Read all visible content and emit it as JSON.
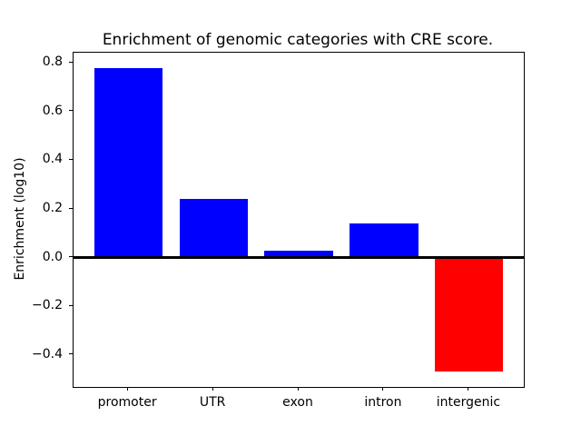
{
  "figure": {
    "title": "Enrichment of genomic categories with CRE score.",
    "ylabel": "Enrichment (log10)",
    "background_color": "#ffffff",
    "spine_color": "#000000"
  },
  "chart_data": {
    "type": "bar",
    "title": "Enrichment of genomic categories with CRE score.",
    "xlabel": "",
    "ylabel": "Enrichment (log10)",
    "categories": [
      "promoter",
      "UTR",
      "exon",
      "intron",
      "intergenic"
    ],
    "values": [
      0.78,
      0.24,
      0.03,
      0.14,
      -0.47
    ],
    "bar_colors": [
      "#0000ff",
      "#0000ff",
      "#0000ff",
      "#0000ff",
      "#ff0000"
    ],
    "positive_color": "#0000ff",
    "negative_color": "#ff0000",
    "bar_width": 0.8,
    "ylim": [
      -0.5325,
      0.8425
    ],
    "xlim": [
      -0.64,
      4.64
    ],
    "yticks": [
      {
        "value": 0.8,
        "label": "0.8"
      },
      {
        "value": 0.6,
        "label": "0.6"
      },
      {
        "value": 0.4,
        "label": "0.4"
      },
      {
        "value": 0.2,
        "label": "0.2"
      },
      {
        "value": 0.0,
        "label": "0.0"
      },
      {
        "value": -0.2,
        "label": "−0.2"
      },
      {
        "value": -0.4,
        "label": "−0.4"
      }
    ],
    "zero_line": true,
    "grid": false,
    "legend": null
  }
}
